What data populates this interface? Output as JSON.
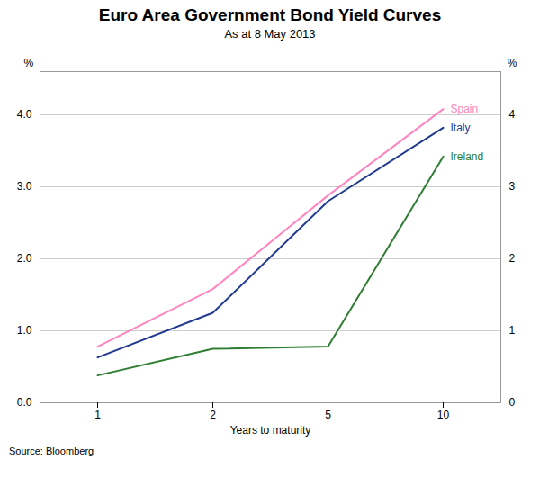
{
  "chart_data": {
    "type": "line",
    "title": "Euro Area Government Bond Yield Curves",
    "subtitle": "As at 8 May 2013",
    "source": "Source: Bloomberg",
    "x_label": "Years to maturity",
    "y_label": "%",
    "y2_label": "%",
    "categories": [
      "1",
      "2",
      "5",
      "10"
    ],
    "series": [
      {
        "name": "Spain",
        "color": "#FF85C0",
        "values": [
          0.78,
          1.58,
          2.88,
          4.08
        ]
      },
      {
        "name": "Italy",
        "color": "#1F3A8F",
        "values": [
          0.63,
          1.25,
          2.8,
          3.82
        ]
      },
      {
        "name": "Ireland",
        "color": "#2E7D32",
        "values": [
          0.38,
          0.75,
          0.78,
          3.42
        ]
      }
    ],
    "ylim": [
      0,
      4.6
    ],
    "yticks": [
      0,
      1,
      2,
      3,
      4
    ],
    "y2lim": [
      0,
      4.6
    ],
    "y2ticks": [
      0,
      1,
      2,
      3,
      4
    ],
    "grid": true
  }
}
